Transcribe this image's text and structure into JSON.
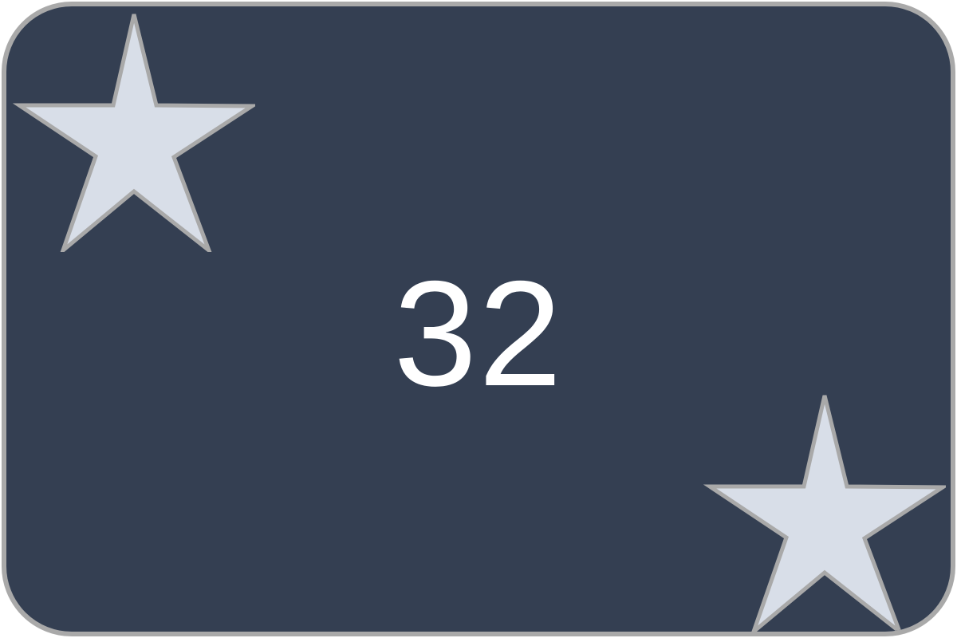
{
  "card": {
    "value": "32",
    "colors": {
      "background": "#343f52",
      "border": "#a9a9a9",
      "star_fill": "#d8dee8",
      "star_stroke": "#a9a9a9",
      "text": "#ffffff"
    },
    "icons": [
      "star-icon",
      "star-icon"
    ]
  }
}
